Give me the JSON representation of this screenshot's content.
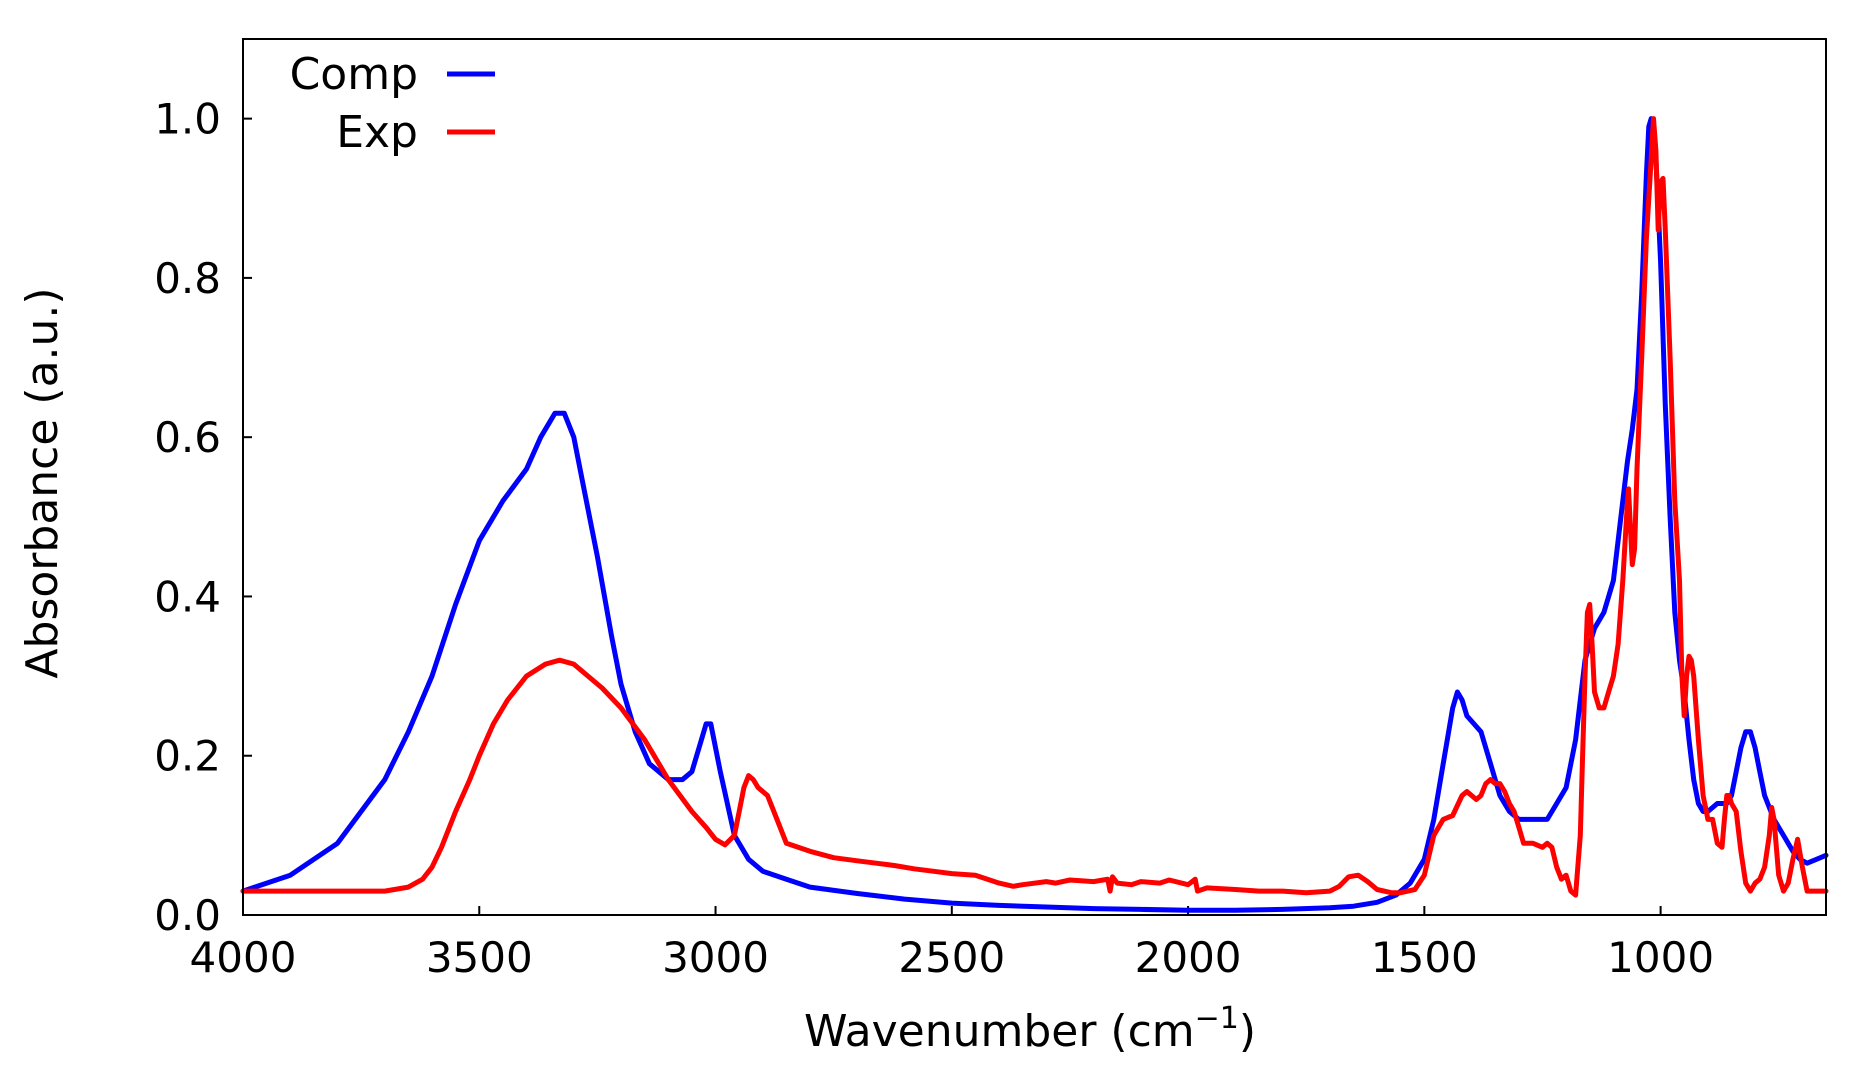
{
  "chart_data": {
    "type": "line",
    "xlabel": "Wavenumber (cm",
    "xlabel_sup": "−1",
    "xlabel_close": ")",
    "ylabel": "Absorbance (a.u.)",
    "xlim": [
      4000,
      650
    ],
    "ylim": [
      0,
      1.1
    ],
    "x_reversed": true,
    "grid": false,
    "legend_position": "top-left",
    "x_ticks": [
      4000,
      3500,
      3000,
      2500,
      2000,
      1500,
      1000
    ],
    "x_tick_labels": [
      "4000",
      "3500",
      "3000",
      "2500",
      "2000",
      "1500",
      "1000"
    ],
    "y_ticks": [
      0.0,
      0.2,
      0.4,
      0.6,
      0.8,
      1.0
    ],
    "y_tick_labels": [
      "0.0",
      "0.2",
      "0.4",
      "0.6",
      "0.8",
      "1.0"
    ],
    "series": [
      {
        "name": "Comp",
        "color": "#0000ff",
        "points": [
          [
            4000,
            0.03
          ],
          [
            3900,
            0.05
          ],
          [
            3800,
            0.09
          ],
          [
            3700,
            0.17
          ],
          [
            3650,
            0.23
          ],
          [
            3600,
            0.3
          ],
          [
            3550,
            0.39
          ],
          [
            3500,
            0.47
          ],
          [
            3450,
            0.52
          ],
          [
            3400,
            0.56
          ],
          [
            3370,
            0.6
          ],
          [
            3340,
            0.63
          ],
          [
            3320,
            0.63
          ],
          [
            3300,
            0.6
          ],
          [
            3280,
            0.54
          ],
          [
            3250,
            0.45
          ],
          [
            3220,
            0.35
          ],
          [
            3200,
            0.29
          ],
          [
            3170,
            0.23
          ],
          [
            3140,
            0.19
          ],
          [
            3100,
            0.17
          ],
          [
            3070,
            0.17
          ],
          [
            3050,
            0.18
          ],
          [
            3030,
            0.22
          ],
          [
            3020,
            0.24
          ],
          [
            3010,
            0.24
          ],
          [
            2990,
            0.18
          ],
          [
            2960,
            0.1
          ],
          [
            2930,
            0.07
          ],
          [
            2900,
            0.055
          ],
          [
            2850,
            0.045
          ],
          [
            2800,
            0.035
          ],
          [
            2700,
            0.027
          ],
          [
            2600,
            0.02
          ],
          [
            2500,
            0.015
          ],
          [
            2400,
            0.012
          ],
          [
            2300,
            0.01
          ],
          [
            2200,
            0.008
          ],
          [
            2100,
            0.007
          ],
          [
            2000,
            0.006
          ],
          [
            1900,
            0.006
          ],
          [
            1800,
            0.007
          ],
          [
            1700,
            0.009
          ],
          [
            1650,
            0.011
          ],
          [
            1600,
            0.016
          ],
          [
            1560,
            0.025
          ],
          [
            1530,
            0.04
          ],
          [
            1500,
            0.07
          ],
          [
            1480,
            0.12
          ],
          [
            1460,
            0.19
          ],
          [
            1440,
            0.26
          ],
          [
            1430,
            0.28
          ],
          [
            1420,
            0.27
          ],
          [
            1410,
            0.25
          ],
          [
            1395,
            0.24
          ],
          [
            1380,
            0.23
          ],
          [
            1360,
            0.19
          ],
          [
            1340,
            0.15
          ],
          [
            1320,
            0.13
          ],
          [
            1300,
            0.12
          ],
          [
            1280,
            0.12
          ],
          [
            1260,
            0.12
          ],
          [
            1240,
            0.12
          ],
          [
            1220,
            0.14
          ],
          [
            1200,
            0.16
          ],
          [
            1180,
            0.22
          ],
          [
            1160,
            0.32
          ],
          [
            1140,
            0.36
          ],
          [
            1120,
            0.38
          ],
          [
            1100,
            0.42
          ],
          [
            1080,
            0.52
          ],
          [
            1070,
            0.57
          ],
          [
            1060,
            0.61
          ],
          [
            1050,
            0.66
          ],
          [
            1040,
            0.78
          ],
          [
            1030,
            0.93
          ],
          [
            1025,
            0.99
          ],
          [
            1020,
            1.0
          ],
          [
            1010,
            0.95
          ],
          [
            1000,
            0.82
          ],
          [
            990,
            0.64
          ],
          [
            980,
            0.5
          ],
          [
            970,
            0.38
          ],
          [
            960,
            0.32
          ],
          [
            950,
            0.28
          ],
          [
            940,
            0.22
          ],
          [
            930,
            0.17
          ],
          [
            920,
            0.14
          ],
          [
            910,
            0.13
          ],
          [
            900,
            0.13
          ],
          [
            880,
            0.14
          ],
          [
            860,
            0.14
          ],
          [
            850,
            0.15
          ],
          [
            840,
            0.18
          ],
          [
            830,
            0.21
          ],
          [
            820,
            0.23
          ],
          [
            810,
            0.23
          ],
          [
            800,
            0.21
          ],
          [
            790,
            0.18
          ],
          [
            780,
            0.15
          ],
          [
            760,
            0.12
          ],
          [
            740,
            0.1
          ],
          [
            720,
            0.08
          ],
          [
            705,
            0.07
          ],
          [
            690,
            0.065
          ],
          [
            670,
            0.07
          ],
          [
            650,
            0.075
          ]
        ]
      },
      {
        "name": "Exp",
        "color": "#ff0000",
        "points": [
          [
            4000,
            0.03
          ],
          [
            3800,
            0.03
          ],
          [
            3700,
            0.03
          ],
          [
            3650,
            0.035
          ],
          [
            3620,
            0.045
          ],
          [
            3600,
            0.06
          ],
          [
            3580,
            0.085
          ],
          [
            3550,
            0.13
          ],
          [
            3520,
            0.17
          ],
          [
            3500,
            0.2
          ],
          [
            3470,
            0.24
          ],
          [
            3440,
            0.27
          ],
          [
            3400,
            0.3
          ],
          [
            3360,
            0.315
          ],
          [
            3330,
            0.32
          ],
          [
            3300,
            0.315
          ],
          [
            3270,
            0.3
          ],
          [
            3240,
            0.285
          ],
          [
            3200,
            0.26
          ],
          [
            3150,
            0.22
          ],
          [
            3100,
            0.17
          ],
          [
            3050,
            0.13
          ],
          [
            3020,
            0.11
          ],
          [
            3000,
            0.095
          ],
          [
            2980,
            0.088
          ],
          [
            2960,
            0.1
          ],
          [
            2950,
            0.13
          ],
          [
            2940,
            0.16
          ],
          [
            2930,
            0.175
          ],
          [
            2920,
            0.17
          ],
          [
            2910,
            0.16
          ],
          [
            2890,
            0.15
          ],
          [
            2870,
            0.12
          ],
          [
            2850,
            0.09
          ],
          [
            2800,
            0.08
          ],
          [
            2750,
            0.072
          ],
          [
            2700,
            0.068
          ],
          [
            2660,
            0.065
          ],
          [
            2620,
            0.062
          ],
          [
            2580,
            0.058
          ],
          [
            2540,
            0.055
          ],
          [
            2500,
            0.052
          ],
          [
            2450,
            0.05
          ],
          [
            2400,
            0.04
          ],
          [
            2370,
            0.036
          ],
          [
            2350,
            0.038
          ],
          [
            2300,
            0.042
          ],
          [
            2280,
            0.04
          ],
          [
            2250,
            0.044
          ],
          [
            2200,
            0.042
          ],
          [
            2170,
            0.045
          ],
          [
            2165,
            0.03
          ],
          [
            2160,
            0.048
          ],
          [
            2150,
            0.04
          ],
          [
            2120,
            0.038
          ],
          [
            2100,
            0.042
          ],
          [
            2060,
            0.04
          ],
          [
            2040,
            0.044
          ],
          [
            2000,
            0.038
          ],
          [
            1985,
            0.045
          ],
          [
            1980,
            0.03
          ],
          [
            1960,
            0.034
          ],
          [
            1900,
            0.032
          ],
          [
            1850,
            0.03
          ],
          [
            1800,
            0.03
          ],
          [
            1750,
            0.028
          ],
          [
            1700,
            0.03
          ],
          [
            1680,
            0.036
          ],
          [
            1660,
            0.048
          ],
          [
            1640,
            0.05
          ],
          [
            1620,
            0.042
          ],
          [
            1600,
            0.032
          ],
          [
            1570,
            0.028
          ],
          [
            1550,
            0.028
          ],
          [
            1520,
            0.032
          ],
          [
            1500,
            0.05
          ],
          [
            1480,
            0.1
          ],
          [
            1460,
            0.12
          ],
          [
            1440,
            0.125
          ],
          [
            1420,
            0.15
          ],
          [
            1410,
            0.155
          ],
          [
            1400,
            0.15
          ],
          [
            1390,
            0.145
          ],
          [
            1380,
            0.15
          ],
          [
            1370,
            0.165
          ],
          [
            1360,
            0.17
          ],
          [
            1350,
            0.165
          ],
          [
            1340,
            0.165
          ],
          [
            1330,
            0.155
          ],
          [
            1320,
            0.14
          ],
          [
            1310,
            0.13
          ],
          [
            1300,
            0.11
          ],
          [
            1290,
            0.09
          ],
          [
            1270,
            0.09
          ],
          [
            1250,
            0.085
          ],
          [
            1240,
            0.09
          ],
          [
            1230,
            0.085
          ],
          [
            1220,
            0.06
          ],
          [
            1210,
            0.045
          ],
          [
            1200,
            0.05
          ],
          [
            1190,
            0.03
          ],
          [
            1180,
            0.025
          ],
          [
            1170,
            0.1
          ],
          [
            1165,
            0.2
          ],
          [
            1160,
            0.3
          ],
          [
            1155,
            0.38
          ],
          [
            1150,
            0.39
          ],
          [
            1145,
            0.34
          ],
          [
            1140,
            0.28
          ],
          [
            1130,
            0.26
          ],
          [
            1120,
            0.26
          ],
          [
            1110,
            0.28
          ],
          [
            1100,
            0.3
          ],
          [
            1090,
            0.34
          ],
          [
            1080,
            0.42
          ],
          [
            1070,
            0.52
          ],
          [
            1068,
            0.535
          ],
          [
            1060,
            0.44
          ],
          [
            1055,
            0.46
          ],
          [
            1050,
            0.56
          ],
          [
            1040,
            0.7
          ],
          [
            1030,
            0.85
          ],
          [
            1020,
            0.95
          ],
          [
            1015,
            1.0
          ],
          [
            1010,
            0.96
          ],
          [
            1005,
            0.86
          ],
          [
            1000,
            0.92
          ],
          [
            995,
            0.925
          ],
          [
            990,
            0.86
          ],
          [
            980,
            0.7
          ],
          [
            970,
            0.52
          ],
          [
            960,
            0.42
          ],
          [
            955,
            0.3
          ],
          [
            950,
            0.25
          ],
          [
            945,
            0.3
          ],
          [
            940,
            0.325
          ],
          [
            935,
            0.32
          ],
          [
            930,
            0.3
          ],
          [
            920,
            0.22
          ],
          [
            910,
            0.15
          ],
          [
            900,
            0.12
          ],
          [
            890,
            0.12
          ],
          [
            880,
            0.09
          ],
          [
            870,
            0.085
          ],
          [
            865,
            0.12
          ],
          [
            860,
            0.15
          ],
          [
            855,
            0.15
          ],
          [
            850,
            0.14
          ],
          [
            840,
            0.13
          ],
          [
            830,
            0.08
          ],
          [
            820,
            0.04
          ],
          [
            810,
            0.03
          ],
          [
            800,
            0.04
          ],
          [
            790,
            0.045
          ],
          [
            780,
            0.06
          ],
          [
            770,
            0.1
          ],
          [
            765,
            0.135
          ],
          [
            760,
            0.12
          ],
          [
            750,
            0.05
          ],
          [
            740,
            0.03
          ],
          [
            730,
            0.04
          ],
          [
            720,
            0.07
          ],
          [
            710,
            0.095
          ],
          [
            700,
            0.06
          ],
          [
            690,
            0.03
          ],
          [
            670,
            0.03
          ],
          [
            650,
            0.03
          ]
        ]
      }
    ]
  }
}
